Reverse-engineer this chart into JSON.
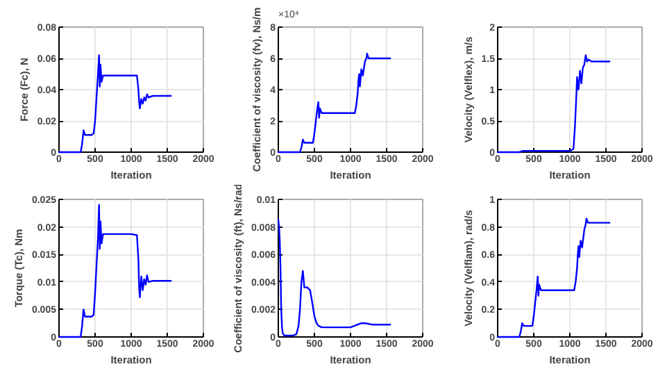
{
  "chart_data": [
    {
      "type": "line",
      "xlabel": "Iteration",
      "ylabel": "Force (Fc), N",
      "xlim": [
        0,
        2000
      ],
      "xticks": [
        0,
        500,
        1000,
        1500,
        2000
      ],
      "ylim": [
        0,
        0.08
      ],
      "yticks": [
        0,
        0.02,
        0.04,
        0.06,
        0.08
      ],
      "grid": true,
      "line_style": "solid",
      "x": [
        0,
        100,
        200,
        300,
        320,
        340,
        360,
        400,
        450,
        480,
        500,
        520,
        540,
        555,
        565,
        575,
        590,
        610,
        700,
        800,
        900,
        1000,
        1080,
        1100,
        1110,
        1120,
        1140,
        1160,
        1180,
        1200,
        1220,
        1240,
        1300,
        1400,
        1500,
        1550
      ],
      "series": [
        {
          "color": "#0000ff",
          "values": [
            0,
            0,
            0,
            0,
            0.005,
            0.014,
            0.011,
            0.011,
            0.011,
            0.012,
            0.02,
            0.035,
            0.05,
            0.062,
            0.042,
            0.056,
            0.045,
            0.049,
            0.049,
            0.049,
            0.049,
            0.049,
            0.049,
            0.04,
            0.032,
            0.028,
            0.034,
            0.031,
            0.035,
            0.033,
            0.037,
            0.035,
            0.036,
            0.036,
            0.036,
            0.036
          ]
        }
      ]
    },
    {
      "type": "line",
      "xlabel": "Iteration",
      "ylabel": "Coefficient of viscosity (fv), Ns/m",
      "annotations": [
        "×10⁴"
      ],
      "xlim": [
        0,
        2000
      ],
      "xticks": [
        0,
        500,
        1000,
        1500,
        2000
      ],
      "ylim": [
        0,
        8
      ],
      "yticks": [
        0,
        2,
        4,
        6,
        8
      ],
      "grid": true,
      "line_style": "solid",
      "x": [
        0,
        100,
        200,
        300,
        320,
        340,
        360,
        400,
        480,
        500,
        520,
        540,
        555,
        565,
        575,
        600,
        700,
        800,
        900,
        1000,
        1060,
        1080,
        1100,
        1110,
        1120,
        1130,
        1150,
        1170,
        1200,
        1220,
        1230,
        1250,
        1300,
        1400,
        1500,
        1550
      ],
      "series": [
        {
          "color": "#0000ff",
          "values": [
            0,
            0,
            0,
            0,
            0.3,
            0.8,
            0.6,
            0.6,
            0.6,
            1.2,
            2.0,
            2.8,
            3.2,
            2.2,
            2.8,
            2.5,
            2.5,
            2.5,
            2.5,
            2.5,
            2.5,
            3.0,
            3.8,
            4.6,
            5.0,
            4.2,
            5.3,
            4.9,
            5.8,
            6.0,
            6.3,
            6.0,
            6.0,
            6.0,
            6.0,
            6.0
          ]
        }
      ]
    },
    {
      "type": "line",
      "xlabel": "Iteration",
      "ylabel": "Velocity (Velflex), m/s",
      "xlim": [
        0,
        2000
      ],
      "xticks": [
        0,
        500,
        1000,
        1500,
        2000
      ],
      "ylim": [
        0,
        2
      ],
      "yticks": [
        0,
        0.5,
        1,
        1.5,
        2
      ],
      "grid": true,
      "line_style": "solid",
      "x": [
        0,
        200,
        300,
        350,
        500,
        700,
        900,
        1000,
        1050,
        1070,
        1090,
        1100,
        1120,
        1140,
        1160,
        1180,
        1200,
        1220,
        1240,
        1260,
        1300,
        1400,
        1500,
        1550
      ],
      "series": [
        {
          "color": "#0000ff",
          "values": [
            0,
            0,
            0,
            0.02,
            0.02,
            0.02,
            0.02,
            0.02,
            0.05,
            0.4,
            0.9,
            1.2,
            1.0,
            1.3,
            1.1,
            1.35,
            1.4,
            1.55,
            1.45,
            1.48,
            1.45,
            1.45,
            1.45,
            1.45
          ]
        }
      ]
    },
    {
      "type": "line",
      "xlabel": "Iteration",
      "ylabel": "Torque (Tc), Nm",
      "xlim": [
        0,
        2000
      ],
      "xticks": [
        0,
        500,
        1000,
        1500,
        2000
      ],
      "ylim": [
        0,
        0.025
      ],
      "yticks": [
        0,
        0.005,
        0.01,
        0.015,
        0.02,
        0.025
      ],
      "grid": true,
      "line_style": "solid",
      "x": [
        0,
        100,
        200,
        300,
        320,
        340,
        360,
        400,
        450,
        480,
        500,
        520,
        540,
        555,
        565,
        575,
        590,
        610,
        700,
        800,
        900,
        1000,
        1080,
        1100,
        1110,
        1120,
        1140,
        1160,
        1180,
        1200,
        1220,
        1240,
        1300,
        1400,
        1500,
        1550
      ],
      "series": [
        {
          "color": "#0000ff",
          "values": [
            0,
            0,
            0,
            0,
            0.002,
            0.005,
            0.0037,
            0.0037,
            0.0037,
            0.004,
            0.008,
            0.013,
            0.018,
            0.024,
            0.016,
            0.021,
            0.017,
            0.0187,
            0.0187,
            0.0187,
            0.0187,
            0.0187,
            0.0185,
            0.014,
            0.009,
            0.0072,
            0.011,
            0.0085,
            0.0105,
            0.0095,
            0.0112,
            0.01,
            0.0102,
            0.0102,
            0.0102,
            0.0102
          ]
        }
      ]
    },
    {
      "type": "line",
      "xlabel": "Iteration",
      "ylabel": "Coefficient of viscosity (ft), Ns/rad",
      "xlim": [
        0,
        2000
      ],
      "xticks": [
        0,
        500,
        1000,
        1500,
        2000
      ],
      "ylim": [
        0,
        0.01
      ],
      "yticks": [
        0,
        0.002,
        0.004,
        0.006,
        0.008,
        0.01
      ],
      "grid": true,
      "line_style": "solid",
      "x": [
        0,
        10,
        20,
        30,
        40,
        50,
        60,
        80,
        100,
        150,
        200,
        250,
        280,
        300,
        320,
        340,
        360,
        400,
        440,
        470,
        500,
        530,
        560,
        600,
        700,
        800,
        900,
        1000,
        1050,
        1100,
        1150,
        1200,
        1300,
        1400,
        1500,
        1550
      ],
      "series": [
        {
          "color": "#0000ff",
          "values": [
            0.0085,
            0.008,
            0.007,
            0.005,
            0.002,
            0.0008,
            0.0003,
            0.0001,
            0.0001,
            0.0001,
            0.0001,
            0.0002,
            0.0008,
            0.002,
            0.004,
            0.0048,
            0.0036,
            0.0036,
            0.0034,
            0.0025,
            0.0015,
            0.001,
            0.0008,
            0.0007,
            0.0007,
            0.0007,
            0.0007,
            0.0007,
            0.0008,
            0.0009,
            0.001,
            0.001,
            0.0009,
            0.0009,
            0.0009,
            0.0009
          ]
        }
      ]
    },
    {
      "type": "line",
      "xlabel": "Iteration",
      "ylabel": "Velocity (Velflam), rad/s",
      "xlim": [
        0,
        2000
      ],
      "xticks": [
        0,
        500,
        1000,
        1500,
        2000
      ],
      "ylim": [
        0,
        1
      ],
      "yticks": [
        0,
        0.2,
        0.4,
        0.6,
        0.8,
        1
      ],
      "grid": true,
      "line_style": "solid",
      "x": [
        0,
        100,
        200,
        300,
        320,
        340,
        360,
        400,
        480,
        500,
        520,
        540,
        555,
        565,
        575,
        600,
        700,
        800,
        900,
        1000,
        1060,
        1080,
        1100,
        1110,
        1120,
        1130,
        1150,
        1170,
        1200,
        1220,
        1230,
        1250,
        1300,
        1400,
        1500,
        1550
      ],
      "series": [
        {
          "color": "#0000ff",
          "values": [
            0,
            0,
            0,
            0,
            0.04,
            0.1,
            0.08,
            0.08,
            0.08,
            0.15,
            0.25,
            0.35,
            0.44,
            0.3,
            0.38,
            0.34,
            0.34,
            0.34,
            0.34,
            0.34,
            0.34,
            0.4,
            0.5,
            0.6,
            0.66,
            0.58,
            0.7,
            0.65,
            0.78,
            0.82,
            0.86,
            0.83,
            0.83,
            0.83,
            0.83,
            0.83
          ]
        }
      ]
    }
  ]
}
